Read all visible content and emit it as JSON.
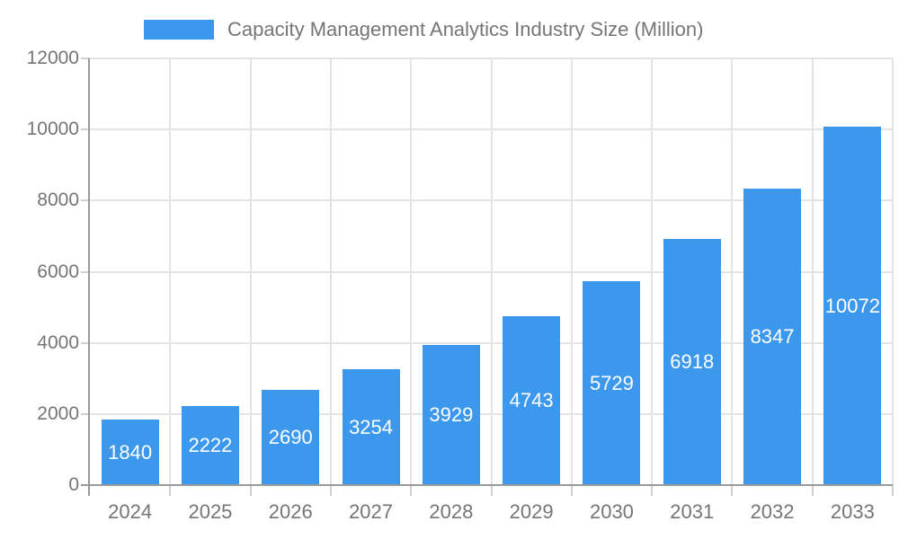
{
  "chart_data": {
    "type": "bar",
    "title": "Capacity Management Analytics Industry Size (Million)",
    "legend": {
      "label": "Capacity Management Analytics Industry Size (Million)",
      "position": "top"
    },
    "categories": [
      "2024",
      "2025",
      "2026",
      "2027",
      "2028",
      "2029",
      "2030",
      "2031",
      "2032",
      "2033"
    ],
    "values": [
      1840,
      2222,
      2690,
      3254,
      3929,
      4743,
      5729,
      6918,
      8347,
      10072
    ],
    "xlabel": "",
    "ylabel": "",
    "ylim": [
      0,
      12000
    ],
    "yticks": [
      0,
      2000,
      4000,
      6000,
      8000,
      10000,
      12000
    ],
    "grid": true,
    "bar_value_labels": true
  },
  "colors": {
    "bar": "#3B98ED",
    "grid": "#E4E4E4",
    "tick": "#CFCFCF",
    "axis": "#9A9A9A",
    "tick_text": "#757575",
    "title_text": "#757575",
    "value_label": "#FFFFFF",
    "background": "#FFFFFF"
  }
}
